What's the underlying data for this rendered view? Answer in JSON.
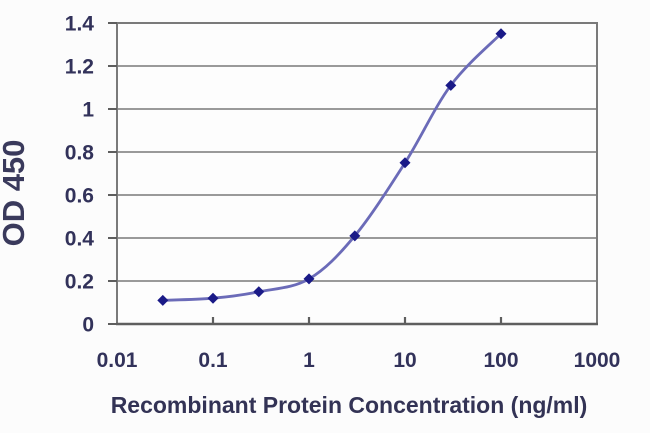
{
  "chart_data": {
    "type": "line",
    "title": "",
    "xlabel": "Recombinant Protein Concentration (ng/ml)",
    "ylabel": "OD 450",
    "x_scale": "log",
    "xlim": [
      0.01,
      1000
    ],
    "ylim": [
      0,
      1.4
    ],
    "x_ticks": [
      0.01,
      0.1,
      1,
      10,
      100,
      1000
    ],
    "x_tick_labels": [
      "0.01",
      "0.1",
      "1",
      "10",
      "100",
      "1000"
    ],
    "y_ticks": [
      0,
      0.2,
      0.4,
      0.6,
      0.8,
      1,
      1.2,
      1.4
    ],
    "y_tick_labels": [
      "0",
      "0.2",
      "0.4",
      "0.6",
      "0.8",
      "1",
      "1.2",
      "1.4"
    ],
    "grid": "horizontal",
    "legend": null,
    "series": [
      {
        "name": "OD 450",
        "x": [
          0.03,
          0.1,
          0.3,
          1,
          3,
          10,
          30,
          100
        ],
        "y": [
          0.11,
          0.12,
          0.15,
          0.21,
          0.41,
          0.75,
          1.11,
          1.35
        ],
        "marker": "diamond",
        "line_color": "#6b6bb8",
        "marker_color": "#1a1a87"
      }
    ]
  },
  "colors": {
    "background": "#fcfcfc",
    "plot_background": "#fdfdfd",
    "grid": "#8c8c8c",
    "frame": "#7a7a7a",
    "axis": "#5e5e5e",
    "tick_text": "#32325a",
    "title_text": "#333355"
  }
}
